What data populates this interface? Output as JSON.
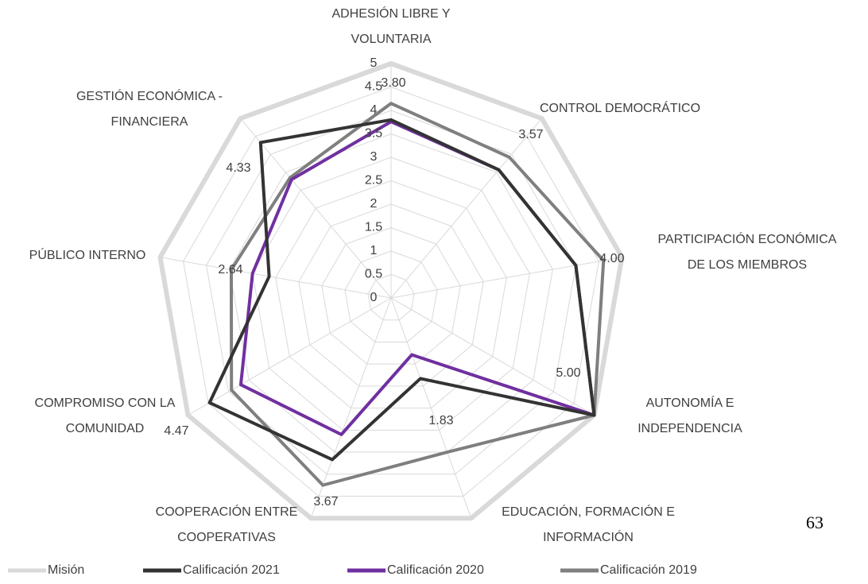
{
  "chart_data": {
    "type": "radar",
    "categories": [
      [
        "ADHESIÓN LIBRE Y",
        "VOLUNTARIA"
      ],
      [
        "CONTROL DEMOCRÁTICO"
      ],
      [
        "PARTICIPACIÓN ECONÓMICA",
        "DE LOS MIEMBROS"
      ],
      [
        "AUTONOMÍA E",
        "INDEPENDENCIA"
      ],
      [
        "EDUCACIÓN, FORMACIÓN E",
        "INFORMACIÓN"
      ],
      [
        "COOPERACIÓN ENTRE",
        "COOPERATIVAS"
      ],
      [
        "COMPROMISO CON LA",
        "COMUNIDAD"
      ],
      [
        "PÚBLICO INTERNO"
      ],
      [
        "GESTIÓN ECONÓMICA -",
        "FINANCIERA"
      ]
    ],
    "series": [
      {
        "name": "Misión",
        "color": "#d9d9d9",
        "values": [
          5,
          5,
          5,
          5,
          5,
          5,
          5,
          5,
          5
        ]
      },
      {
        "name": "Calificación 2019",
        "color": "#7f7f7f",
        "values": [
          4.15,
          3.92,
          4.6,
          5,
          3.5,
          4.25,
          3.93,
          3.46,
          3.35
        ]
      },
      {
        "name": "Calificación 2020",
        "color": "#7030a0",
        "values": [
          3.76,
          3.57,
          4.0,
          5,
          1.29,
          3.1,
          3.7,
          3.0,
          3.3
        ]
      },
      {
        "name": "Calificación 2021",
        "color": "#333333",
        "values": [
          3.8,
          3.57,
          4.0,
          5,
          1.83,
          3.67,
          4.47,
          2.64,
          4.33
        ],
        "value_labels": [
          "3.80",
          "3.57",
          "4.00",
          "5.00",
          "1.83",
          "3.67",
          "4.47",
          "2.64",
          "4.33"
        ]
      }
    ],
    "legend_order": [
      0,
      3,
      2,
      1
    ],
    "ylim": [
      0,
      5
    ],
    "yticks": [
      0,
      0.5,
      1,
      1.5,
      2,
      2.5,
      3,
      3.5,
      4,
      4.5,
      5
    ],
    "grid": true,
    "page_number": "63"
  }
}
